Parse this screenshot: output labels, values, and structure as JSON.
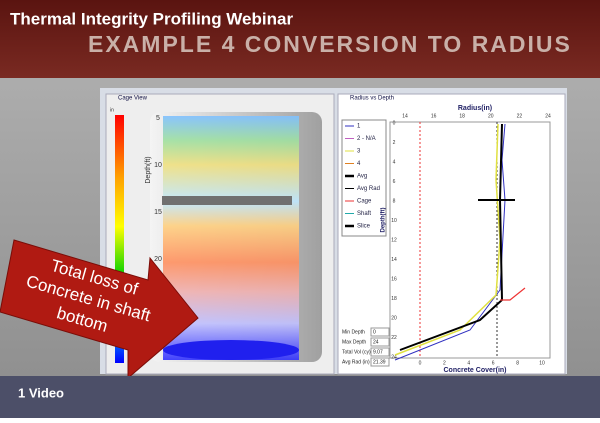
{
  "header": {
    "title": "Thermal Integrity Profiling Webinar",
    "subtitle": "EXAMPLE 4 CONVERSION TO RADIUS"
  },
  "cage_view": {
    "title": "Cage View",
    "unit": "in",
    "depth_label": "Depth(ft)",
    "depth_ticks": [
      "5",
      "10",
      "15",
      "20"
    ]
  },
  "radius_chart": {
    "title": "Radius vs Depth",
    "top_axis_label": "Radius(in)",
    "top_ticks": [
      "14",
      "16",
      "18",
      "20",
      "22",
      "24"
    ],
    "bottom_axis_label": "Concrete Cover(in)",
    "bottom_ticks": [
      "0",
      "2",
      "4",
      "6",
      "8",
      "10"
    ],
    "depth_label": "Depth(ft)",
    "depth_ticks": [
      "0",
      "2",
      "4",
      "6",
      "8",
      "10",
      "12",
      "14",
      "16",
      "18",
      "20",
      "22",
      "24"
    ],
    "legend": [
      "1",
      "2 - N/A",
      "3",
      "4",
      "Avg",
      "Avg Rad",
      "Cage",
      "Shaft",
      "Slice"
    ]
  },
  "fields": [
    {
      "label": "Min Depth",
      "value": "0"
    },
    {
      "label": "Max Depth",
      "value": "24"
    },
    {
      "label": "Total Vol (cy)",
      "value": "9.07"
    },
    {
      "label": "Avg Rad (in)",
      "value": "21.39"
    }
  ],
  "callout": [
    "Total loss of",
    "Concrete in shaft",
    "bottom"
  ],
  "footer": {
    "label": "1 Video"
  }
}
